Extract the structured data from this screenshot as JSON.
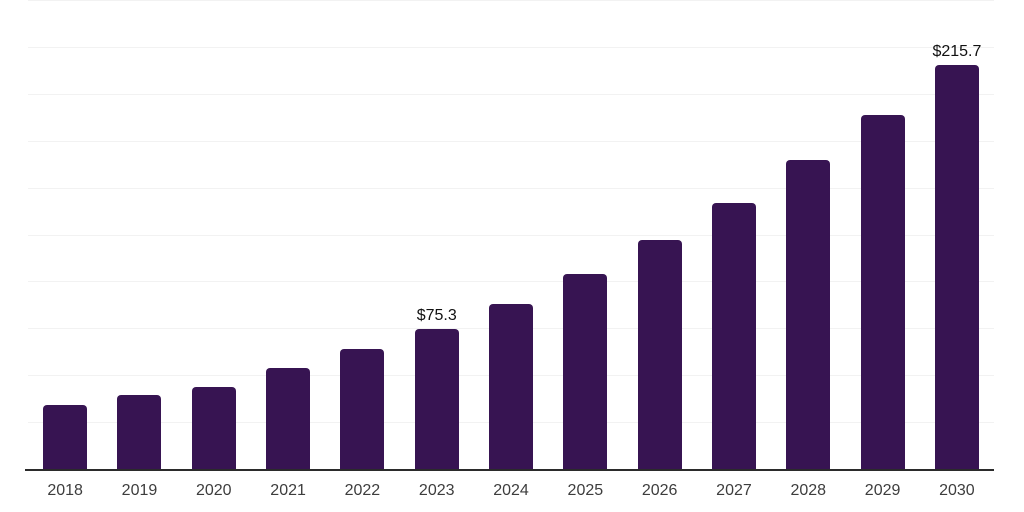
{
  "chart_data": {
    "type": "bar",
    "categories": [
      "2018",
      "2019",
      "2020",
      "2021",
      "2022",
      "2023",
      "2024",
      "2025",
      "2026",
      "2027",
      "2028",
      "2029",
      "2030"
    ],
    "values": [
      34.6,
      39.8,
      44.2,
      54.4,
      64.5,
      75.3,
      88.5,
      104.5,
      122.6,
      142.3,
      165.2,
      189.2,
      215.7
    ],
    "data_labels": [
      "",
      "",
      "",
      "",
      "",
      "$75.3",
      "",
      "",
      "",
      "",
      "",
      "",
      "$215.7"
    ],
    "title": "",
    "xlabel": "",
    "ylabel": "",
    "ylim": [
      0,
      250
    ],
    "gridline_step": 25,
    "grid": "horizontal",
    "legend": "none",
    "colors": {
      "bar": "#371452",
      "axis_line": "#2b2b2b",
      "gridline": "#f2f2f2",
      "tick_label": "#3d3d3d",
      "data_label": "#111111",
      "background": "#ffffff"
    }
  }
}
